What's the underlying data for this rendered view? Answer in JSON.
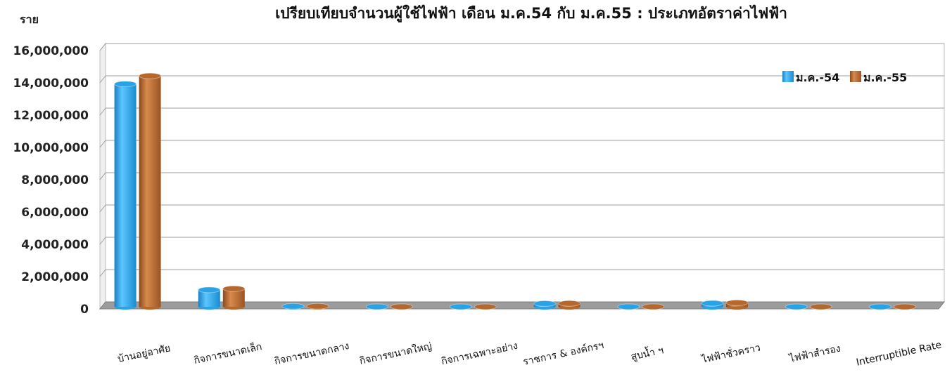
{
  "chart_data": {
    "type": "bar",
    "title": "เปรียบเทียบจำนวนผู้ใช้ไฟฟ้า เดือน ม.ค.54 กับ ม.ค.55 : ประเภทอัตราค่าไฟฟ้า",
    "ylabel": "ราย",
    "xlabel": "",
    "ylim": [
      0,
      16000000
    ],
    "yticks": [
      "0",
      "2,000,000",
      "4,000,000",
      "6,000,000",
      "8,000,000",
      "10,000,000",
      "12,000,000",
      "14,000,000",
      "16,000,000"
    ],
    "grid": true,
    "legend": "top-right",
    "categories": [
      "บ้านอยู่อาศัย",
      "กิจการขนาดเล็ก",
      "กิจการขนาดกลาง",
      "กิจการขนาดใหญ่",
      "กิจการเฉพาะอย่าง",
      "ราชการ & องค์กรฯ",
      "สูบน้ำ ฯ",
      "ไฟฟ้าชั่วคราว",
      "ไฟฟ้าสำรอง",
      "Interruptible Rate"
    ],
    "series": [
      {
        "name": "ม.ค.-54",
        "color": "#29a3e6",
        "values": [
          13800000,
          1050000,
          30000,
          5000,
          2000,
          200000,
          5000,
          220000,
          2000,
          500
        ]
      },
      {
        "name": "ม.ค.-55",
        "color": "#b5682e",
        "values": [
          14300000,
          1120000,
          32000,
          5500,
          2500,
          210000,
          5500,
          250000,
          2200,
          600
        ]
      }
    ]
  }
}
